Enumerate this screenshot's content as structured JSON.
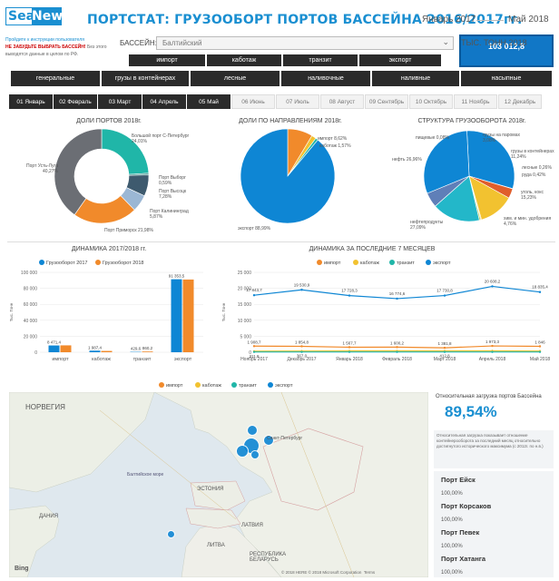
{
  "header": {
    "logo_sea": "Sea",
    "logo_news": "News",
    "title": "ПОРТСТАТ: ГРУЗООБОРТ ПОРТОВ БАССЕЙНА 2016/2017гг.",
    "date_from": "Январь 2017",
    "date_to": "Май 2018"
  },
  "instructions": {
    "line1": "Пройдите к инструкции пользователя",
    "line2": "НЕ ЗАБУДЬТЕ ВЫБРАТЬ БАССЕЙН!",
    "line3": "Без этого выводятся данные в целом по РФ."
  },
  "basin": {
    "label": "БАССЕЙН:",
    "value": "Балтийский"
  },
  "total": {
    "label": "ТЫС. ТОНН 2018",
    "value": "103 012,8"
  },
  "categories": [
    "импорт",
    "каботаж",
    "транзит",
    "экспорт"
  ],
  "cargo_types": [
    "генеральные",
    "грузы в контейнерах",
    "лесные",
    "наливочные",
    "наливные",
    "насыпные"
  ],
  "months": [
    {
      "label": "01 Январь",
      "on": true
    },
    {
      "label": "02 Февраль",
      "on": true
    },
    {
      "label": "03 Март",
      "on": true
    },
    {
      "label": "04 Апрель",
      "on": true
    },
    {
      "label": "05 Май",
      "on": true
    },
    {
      "label": "06 Июнь",
      "on": false
    },
    {
      "label": "07 Июль",
      "on": false
    },
    {
      "label": "08 Август",
      "on": false
    },
    {
      "label": "09 Сентябрь",
      "on": false
    },
    {
      "label": "10 Октябрь",
      "on": false
    },
    {
      "label": "11 Ноябрь",
      "on": false
    },
    {
      "label": "12 Декабрь",
      "on": false
    }
  ],
  "colors": {
    "blue": "#0e86d4",
    "orange": "#f18a2b",
    "yellow": "#f2c230",
    "teal": "#20b6a8",
    "gray": "#6b6e74",
    "dark": "#2b2b2b"
  },
  "chart_data": [
    {
      "type": "pie",
      "title": "ДОЛИ ПОРТОВ 2018г.",
      "slices": [
        {
          "label": "Большой порт С-Петербург",
          "value": 24.01,
          "text": "Большой порт С-Петербург\n24,01%"
        },
        {
          "label": "Порт Выборг",
          "value": 0.59,
          "text": "Порт Выборг\n0,59%"
        },
        {
          "label": "Порт Высоцк",
          "value": 7.28,
          "text": "Порт Высоцк\n7,28%"
        },
        {
          "label": "Порт Калининград",
          "value": 5.87,
          "text": "Порт Калининград\n5,87%"
        },
        {
          "label": "Порт Приморск",
          "value": 21.98,
          "text": "Порт Приморск 21,98%"
        },
        {
          "label": "Порт Усть-Луга",
          "value": 40.27,
          "text": "Порт Усть-Луга\n40,27%"
        }
      ]
    },
    {
      "type": "pie",
      "title": "ДОЛИ ПО НАПРАВЛЕНИЯМ 2018г.",
      "slices": [
        {
          "label": "импорт",
          "value": 8.62,
          "text": "импорт 8,62%"
        },
        {
          "label": "каботаж",
          "value": 1.57,
          "text": "каботаж 1,57%"
        },
        {
          "label": "транзит",
          "value": 0.9,
          "text": ""
        },
        {
          "label": "экспорт",
          "value": 88.99,
          "text": "экспорт 88,99%"
        }
      ]
    },
    {
      "type": "pie",
      "title": "СТРУКТУРА ГРУЗООБОРОТА 2018г.",
      "slices": [
        {
          "label": "нефть",
          "value": 26.96,
          "text": "нефть 26,96%"
        },
        {
          "label": "пищевые",
          "value": 0.08,
          "text": "пищевые 0,08%"
        },
        {
          "label": "грузы на паромах",
          "value": 3.08,
          "text": "грузы на паромах\n3,08%"
        },
        {
          "label": "грузы в контейнерах",
          "value": 11.24,
          "text": "грузы в контейнерах\n11,24%"
        },
        {
          "label": "лесные",
          "value": 0.26,
          "text": "лесные 0,26%"
        },
        {
          "label": "руда",
          "value": 0.42,
          "text": "руда 0,42%"
        },
        {
          "label": "уголь, кокс",
          "value": 15.23,
          "text": "уголь, кокс\n15,23%"
        },
        {
          "label": "хим. и мин. удобрения",
          "value": 4.76,
          "text": "хим. и мин. удобрения\n4,76%"
        },
        {
          "label": "нефтепродукты",
          "value": 27.09,
          "text": "нефтепродукты\n27,09%"
        }
      ]
    },
    {
      "type": "bar",
      "title": "ДИНАМИКА 2017/2018 гг.",
      "ylabel": "Тыс. Тонн",
      "categories": [
        "импорт",
        "каботаж",
        "транзит",
        "экспорт"
      ],
      "ylim": [
        0,
        100000
      ],
      "yticks": [
        "0",
        "20 000",
        "40 000",
        "60 000",
        "80 000",
        "100 000"
      ],
      "series": [
        {
          "name": "Грузооборот 2017",
          "values": [
            8471.4,
            1987.4,
            429.6,
            91353.5
          ],
          "labels": [
            "8 471,4",
            "1 987,4",
            "429,6",
            "91 353,5"
          ]
        },
        {
          "name": "Грузооборот 2018",
          "values": [
            8600,
            1620,
            860.2,
            91000
          ],
          "labels": [
            "",
            "",
            "860,2",
            ""
          ]
        }
      ]
    },
    {
      "type": "line",
      "title": "ДИНАМИКА ЗА ПОСЛЕДНИЕ 7 МЕСЯЦЕВ",
      "ylabel": "Тыс. Тонн",
      "categories": [
        "Ноябрь 2017",
        "Декабрь 2017",
        "Январь 2018",
        "Февраль 2018",
        "Март 2018",
        "Апрель 2018",
        "Май 2018"
      ],
      "ylim": [
        0,
        25000
      ],
      "yticks": [
        "0",
        "5 000",
        "10 000",
        "15 000",
        "20 000",
        "25 000"
      ],
      "series": [
        {
          "name": "импорт",
          "values": [
            1908.7,
            1854.8,
            1567.7,
            1600.2,
            1381.8,
            1973.3,
            1846
          ],
          "labels": [
            "1 908,7",
            "1 854,8",
            "1 567,7",
            "1 600,2",
            "1 381,8",
            "1 973,3",
            "1 846"
          ]
        },
        {
          "name": "каботаж",
          "values": [
            311.8,
            367.0,
            417,
            420,
            412.8,
            440,
            360
          ],
          "labels": [
            "311,8",
            "367,0",
            "",
            "",
            "412,8",
            "",
            ""
          ]
        },
        {
          "name": "транзит",
          "values": [
            93,
            95,
            89,
            92,
            90,
            94,
            93
          ],
          "labels": [
            "",
            "",
            "",
            "",
            "",
            "",
            ""
          ]
        },
        {
          "name": "экспорт",
          "values": [
            17843.7,
            19530.9,
            17728.3,
            16774.6,
            17730.8,
            20608.2,
            18835.4
          ],
          "labels": [
            "17 843,7",
            "19 530,9",
            "17 728,3",
            "16 774,6",
            "17 730,8",
            "20 608,2",
            "18 835,4"
          ]
        }
      ]
    }
  ],
  "map": {
    "legend": [
      "импорт",
      "каботаж",
      "транзит",
      "экспорт"
    ],
    "labels": {
      "norway": "НОРВЕГИЯ",
      "estonia": "ЭСТОНИЯ",
      "latvia": "ЛАТВИЯ",
      "lithuania": "ЛИТВА",
      "denmark": "ДАНИЯ",
      "belarus": "РЕСПУБЛИКА\nБЕЛАРУСЬ",
      "spb": "Санкт-Петербург",
      "sea": "Балтийское море",
      "bing": "Bing",
      "copyright": "© 2018 HERE © 2018 Microsoft Corporation  Terms"
    }
  },
  "side": {
    "load_title": "Относительная загрузка портов Бассейна",
    "load_value": "89,54%",
    "description": "Относительная загрузка показывает отношение контейнерооборота за последний месяц относительно достигнутого исторического максимума (с 2012г. по н.в.)",
    "ports": [
      {
        "name": "Порт Ейск",
        "value": "100,00%"
      },
      {
        "name": "Порт Корсаков",
        "value": "100,00%"
      },
      {
        "name": "Порт Певек",
        "value": "100,00%"
      },
      {
        "name": "Порт Хатанга",
        "value": "100,00%"
      }
    ]
  }
}
